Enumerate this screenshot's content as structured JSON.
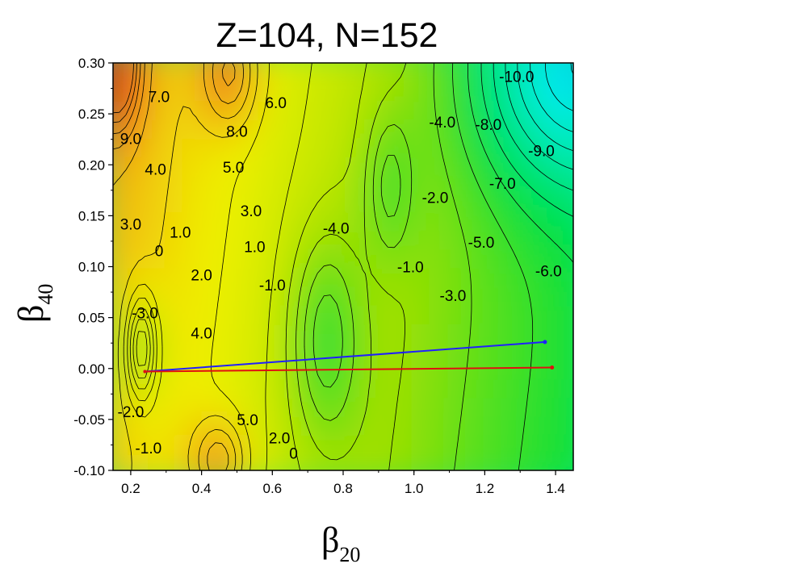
{
  "chart_data": {
    "type": "contour",
    "title": "Z=104, N=152",
    "xlabel": {
      "symbol": "β",
      "subscript": "20"
    },
    "ylabel": {
      "symbol": "β",
      "subscript": "40"
    },
    "xlim": [
      0.15,
      1.45
    ],
    "ylim": [
      -0.1,
      0.3
    ],
    "xticks": [
      "0.2",
      "0.4",
      "0.6",
      "0.8",
      "1.0",
      "1.2",
      "1.4"
    ],
    "xtick_values": [
      0.2,
      0.4,
      0.6,
      0.8,
      1.0,
      1.2,
      1.4
    ],
    "yticks": [
      "0.30",
      "0.25",
      "0.20",
      "0.15",
      "0.10",
      "0.05",
      "0.00",
      "-0.05",
      "-0.10"
    ],
    "ytick_values": [
      0.3,
      0.25,
      0.2,
      0.15,
      0.1,
      0.05,
      0.0,
      -0.05,
      -0.1
    ],
    "colormap": [
      "#1e5cf0",
      "#00f0f0",
      "#00e6a0",
      "#00e040",
      "#a0e000",
      "#f0f000",
      "#f08020",
      "#e02010"
    ],
    "color_range": [
      -11,
      11
    ],
    "contour_labels": [
      {
        "text": "7.0",
        "x": 0.28,
        "y": 0.267
      },
      {
        "text": "6.0",
        "x": 0.61,
        "y": 0.261
      },
      {
        "text": "9.0",
        "x": 0.2,
        "y": 0.226
      },
      {
        "text": "8.0",
        "x": 0.5,
        "y": 0.233
      },
      {
        "text": "4.0",
        "x": 0.27,
        "y": 0.196
      },
      {
        "text": "5.0",
        "x": 0.49,
        "y": 0.198
      },
      {
        "text": "3.0",
        "x": 0.54,
        "y": 0.155
      },
      {
        "text": "3.0",
        "x": 0.2,
        "y": 0.142
      },
      {
        "text": "1.0",
        "x": 0.34,
        "y": 0.134
      },
      {
        "text": "0",
        "x": 0.28,
        "y": 0.116
      },
      {
        "text": "1.0",
        "x": 0.55,
        "y": 0.12
      },
      {
        "text": "2.0",
        "x": 0.4,
        "y": 0.092
      },
      {
        "text": "-1.0",
        "x": 0.6,
        "y": 0.082
      },
      {
        "text": "-3.0",
        "x": 0.24,
        "y": 0.055
      },
      {
        "text": "4.0",
        "x": 0.4,
        "y": 0.035
      },
      {
        "text": "-4.0",
        "x": 0.78,
        "y": 0.138
      },
      {
        "text": "-2.0",
        "x": 1.06,
        "y": 0.168
      },
      {
        "text": "-1.0",
        "x": 0.99,
        "y": 0.1
      },
      {
        "text": "-3.0",
        "x": 1.11,
        "y": 0.072
      },
      {
        "text": "-4.0",
        "x": 1.08,
        "y": 0.242
      },
      {
        "text": "-8.0",
        "x": 1.21,
        "y": 0.24
      },
      {
        "text": "-10.0",
        "x": 1.29,
        "y": 0.287
      },
      {
        "text": "-9.0",
        "x": 1.36,
        "y": 0.214
      },
      {
        "text": "-7.0",
        "x": 1.25,
        "y": 0.182
      },
      {
        "text": "-5.0",
        "x": 1.19,
        "y": 0.124
      },
      {
        "text": "-6.0",
        "x": 1.38,
        "y": 0.096
      },
      {
        "text": "-2.0",
        "x": 0.2,
        "y": -0.042
      },
      {
        "text": "5.0",
        "x": 0.53,
        "y": -0.05
      },
      {
        "text": "2.0",
        "x": 0.62,
        "y": -0.068
      },
      {
        "text": "-1.0",
        "x": 0.25,
        "y": -0.078
      },
      {
        "text": "0",
        "x": 0.66,
        "y": -0.083
      }
    ],
    "series": [
      {
        "color": "#2020ff",
        "points": [
          [
            0.24,
            -0.003
          ],
          [
            1.37,
            0.026
          ]
        ]
      },
      {
        "color": "#e01010",
        "points": [
          [
            0.24,
            -0.003
          ],
          [
            1.39,
            0.001
          ]
        ]
      }
    ]
  }
}
